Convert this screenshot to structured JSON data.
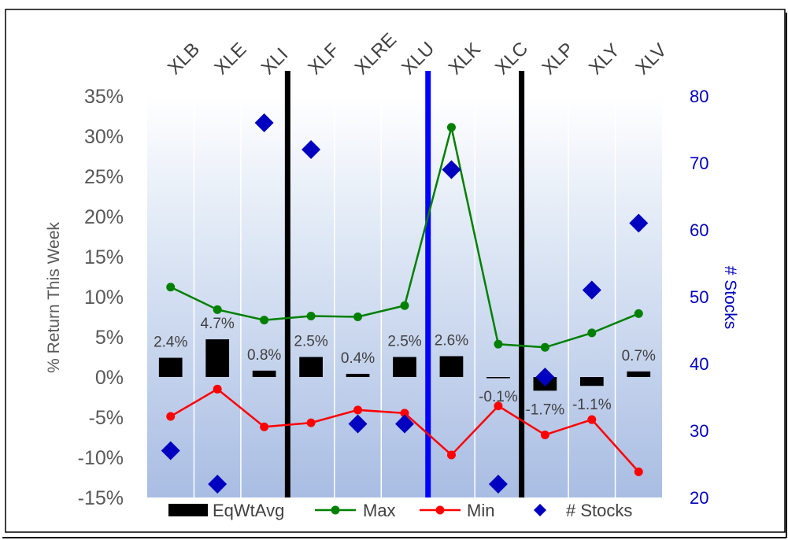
{
  "chart_data": {
    "type": "bar",
    "categories": [
      "XLB",
      "XLE",
      "XLI",
      "XLF",
      "XLRE",
      "XLU",
      "XLK",
      "XLC",
      "XLP",
      "XLY",
      "XLV"
    ],
    "series": [
      {
        "name": "EqWtAvg",
        "kind": "bar",
        "axis": "left",
        "color": "#000000",
        "values": [
          2.4,
          4.7,
          0.8,
          2.5,
          0.4,
          2.5,
          2.6,
          -0.1,
          -1.7,
          -1.1,
          0.7
        ],
        "labels": [
          "2.4%",
          "4.7%",
          "0.8%",
          "2.5%",
          "0.4%",
          "2.5%",
          "2.6%",
          "-0.1%",
          "-1.7%",
          "-1.1%",
          "0.7%"
        ]
      },
      {
        "name": "Max",
        "kind": "line",
        "axis": "left",
        "color": "#008000",
        "values": [
          11.2,
          8.4,
          7.1,
          7.6,
          7.5,
          8.9,
          31.1,
          4.1,
          3.7,
          5.5,
          7.9
        ]
      },
      {
        "name": "Min",
        "kind": "line",
        "axis": "left",
        "color": "#ff0000",
        "values": [
          -4.9,
          -1.5,
          -6.2,
          -5.7,
          -4.1,
          -4.5,
          -9.7,
          -3.6,
          -7.2,
          -5.3,
          -11.8
        ]
      },
      {
        "name": "# Stocks",
        "kind": "scatter",
        "axis": "right",
        "color": "#0000c0",
        "values": [
          27,
          22,
          76,
          72,
          31,
          31,
          69,
          22,
          38,
          51,
          61
        ]
      }
    ],
    "ylabel": "% Return This Week",
    "y2label": "# Stocks",
    "ylim": [
      -15,
      35
    ],
    "y2lim": [
      20,
      80
    ],
    "y_ticks": [
      35,
      30,
      25,
      20,
      15,
      10,
      5,
      0,
      -5,
      -10,
      -15
    ],
    "y_tick_labels": [
      "35%",
      "30%",
      "25%",
      "20%",
      "15%",
      "10%",
      "5%",
      "0%",
      "-5%",
      "-10%",
      "-15%"
    ],
    "y2_ticks": [
      80,
      70,
      60,
      50,
      40,
      30,
      20
    ],
    "y2_tick_labels": [
      "80",
      "70",
      "60",
      "50",
      "40",
      "30",
      "20"
    ],
    "separators": [
      {
        "after": "XLI",
        "color": "#000000"
      },
      {
        "after": "XLU",
        "color": "#0000ff"
      },
      {
        "after": "XLC",
        "color": "#000000"
      }
    ],
    "legend_position": "bottom",
    "grid": "vertical"
  }
}
